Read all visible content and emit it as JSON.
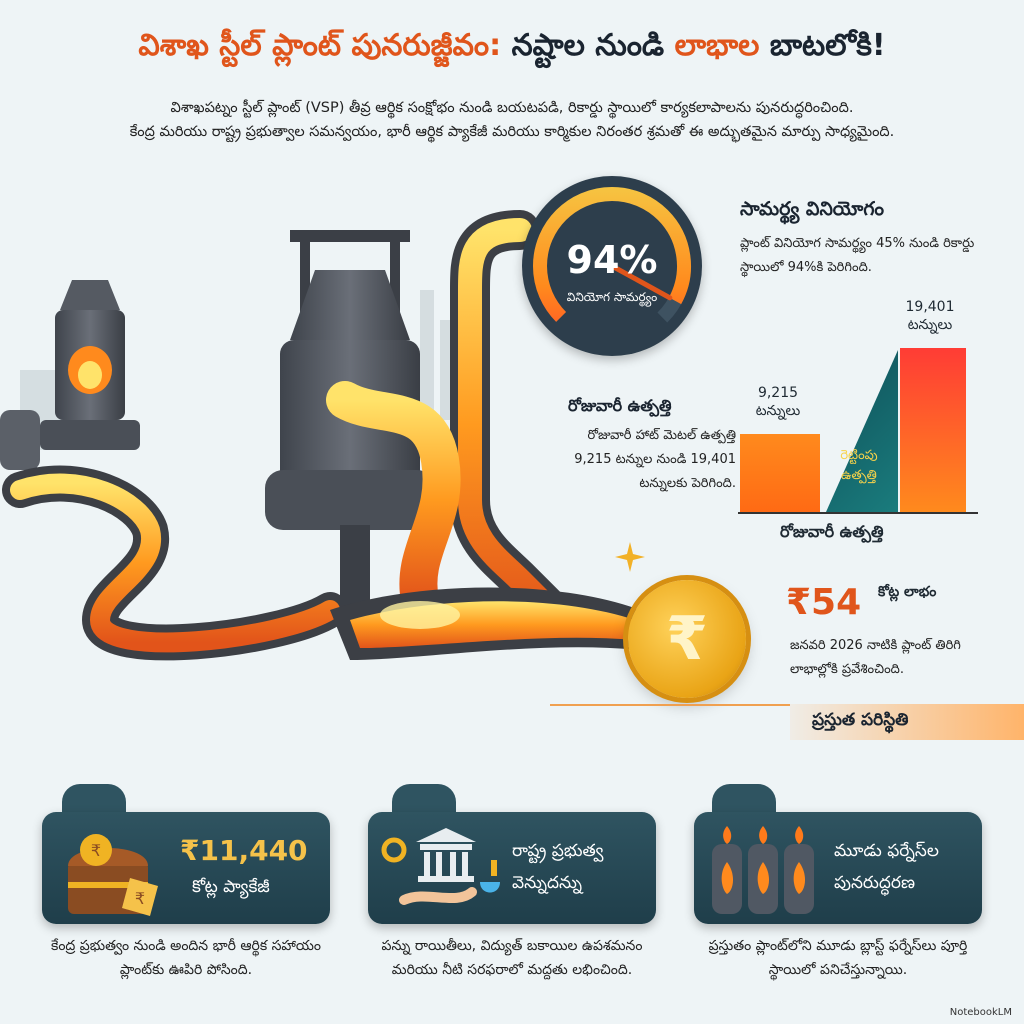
{
  "title": {
    "part1": "విశాఖ స్టీల్ ప్లాంట్ పునరుజ్జీవం:",
    "part2": "నష్టాల నుండి",
    "part3": "లాభాల",
    "part4": "బాటలోకి!"
  },
  "intro": {
    "line1": "విశాఖపట్నం స్టీల్ ప్లాంట్ (VSP) తీవ్ర ఆర్థిక సంక్షోభం నుండి బయటపడి, రికార్డు స్థాయిలో కార్యకలాపాలను పునరుద్ధరించింది.",
    "line2": "కేంద్ర మరియు రాష్ట్ర ప్రభుత్వాల సమన్వయం, భారీ ఆర్థిక ప్యాకేజీ మరియు కార్మికుల నిరంతర శ్రమతో ఈ అద్భుతమైన మార్పు సాధ్యమైంది."
  },
  "gauge": {
    "value": "94%",
    "label": "వినియోగ సామర్థ్యం",
    "percent": 94
  },
  "capacity": {
    "title": "సామర్థ్య వినియోగం",
    "text": "ప్లాంట్ వినియోగ సామర్థ్యం 45% నుండి రికార్డు స్థాయిలో 94%కి పెరిగింది."
  },
  "daily": {
    "title": "రోజువారీ ఉత్పత్తి",
    "text": "రోజువారీ హాట్ మెటల్ ఉత్పత్తి 9,215 టన్నుల నుండి 19,401 టన్నులకు పెరిగింది."
  },
  "chart_data": {
    "type": "bar",
    "categories": [
      "",
      ""
    ],
    "values": [
      9215,
      19401
    ],
    "value_labels": [
      "9,215",
      "19,401"
    ],
    "unit": "టన్నులు",
    "annotation": "రెట్టింపు ఉత్పత్తి",
    "xlabel": "రోజువారీ ఉత్పత్తి",
    "ylabel": "",
    "colors": [
      "#ff7a1a",
      "#ff4a30"
    ]
  },
  "profit": {
    "amount": "₹54",
    "unit": "కోట్ల లాభం",
    "text": "జనవరి 2026 నాటికి ప్లాంట్ తిరిగి లాభాల్లోకి ప్రవేశించింది.",
    "coin_symbol": "₹"
  },
  "status": {
    "label": "ప్రస్తుత పరిస్థితి"
  },
  "cards": [
    {
      "title1": "₹11,440",
      "title2": "కోట్ల ప్యాకేజీ",
      "desc": "కేంద్ర ప్రభుత్వం నుండి అందిన భారీ ఆర్థిక సహాయం ప్లాంట్‌కు ఊపిరి పోసింది.",
      "icon": "treasure-chest-icon"
    },
    {
      "title1": "రాష్ట్ర ప్రభుత్వ",
      "title2": "వెన్నుదన్ను",
      "desc": "పన్ను రాయితీలు, విద్యుత్ బకాయిల ఉపశమనం మరియు నీటి సరఫరాలో మద్దతు లభించింది.",
      "icon": "government-building-icon"
    },
    {
      "title1": "మూడు ఫర్నేస్‌ల",
      "title2": "పునరుద్ధరణ",
      "desc": "ప్రస్తుతం ప్లాంట్‌లోని మూడు బ్లాస్ట్ ఫర్నేస్‌లు పూర్తి స్థాయిలో పనిచేస్తున్నాయి.",
      "icon": "furnace-icon"
    }
  ],
  "footer": "NotebookLM",
  "colors": {
    "accent": "#e0551b",
    "dark_panel": "#2d3e4c",
    "card": "#1f3e4a",
    "gold": "#f0b323"
  }
}
